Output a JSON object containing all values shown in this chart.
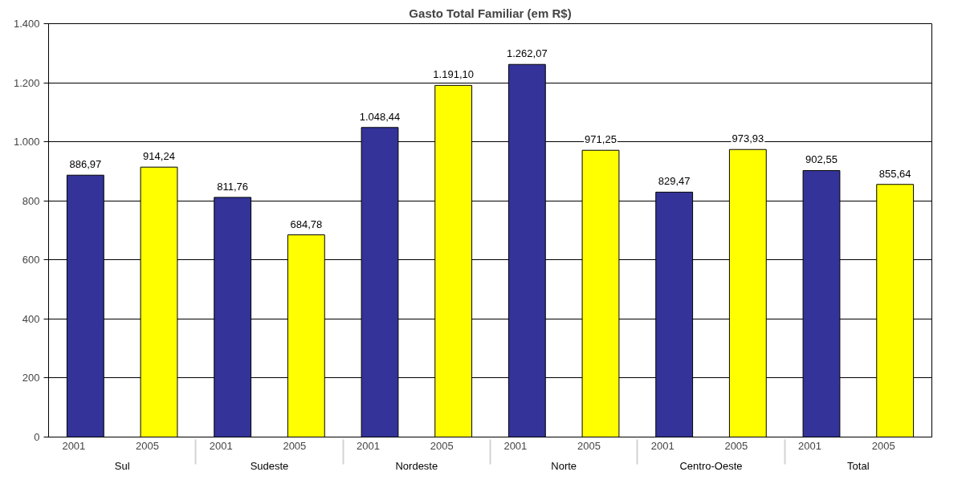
{
  "chart_data": {
    "type": "bar",
    "title": "Gasto Total Familiar (em R$)",
    "categories": [
      "Sul",
      "Sudeste",
      "Nordeste",
      "Norte",
      "Centro-Oeste",
      "Total"
    ],
    "series": [
      {
        "name": "2001",
        "color": "#333399",
        "values": [
          886.97,
          811.76,
          1048.44,
          1262.07,
          829.47,
          902.55
        ],
        "value_labels": [
          "886,97",
          "811,76",
          "1.048,44",
          "1.262,07",
          "829,47",
          "902,55"
        ]
      },
      {
        "name": "2005",
        "color": "#ffff00",
        "values": [
          914.24,
          684.78,
          1191.1,
          971.25,
          973.93,
          855.64
        ],
        "value_labels": [
          "914,24",
          "684,78",
          "1.191,10",
          "971,25",
          "973,93",
          "855,64"
        ]
      }
    ],
    "ylim": [
      0,
      1400
    ],
    "yticks": [
      0,
      200,
      400,
      600,
      800,
      {
        "value": 1000,
        "label": "1.000"
      },
      {
        "value": 1200,
        "label": "1.200"
      },
      {
        "value": 1400,
        "label": "1.400"
      }
    ],
    "grid": "y"
  }
}
